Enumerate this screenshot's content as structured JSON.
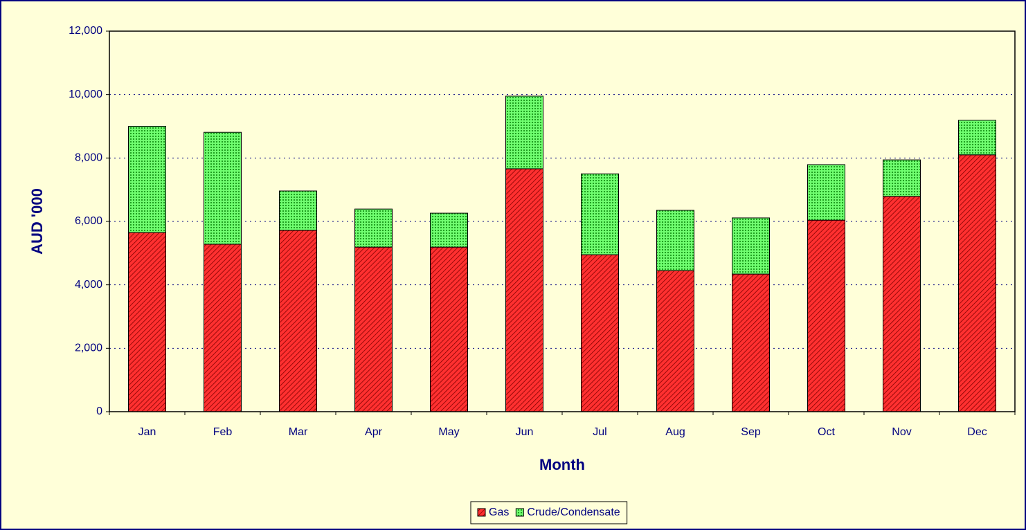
{
  "chart_data": {
    "type": "stacked_bar",
    "x_label": "Month",
    "y_label": "AUD '000",
    "categories": [
      "Jan",
      "Feb",
      "Mar",
      "Apr",
      "May",
      "Jun",
      "Jul",
      "Aug",
      "Sep",
      "Oct",
      "Nov",
      "Dec"
    ],
    "series": [
      {
        "name": "Gas",
        "color": "#ff2020",
        "values": [
          5650,
          5280,
          5720,
          5190,
          5190,
          7660,
          4950,
          4450,
          4340,
          6040,
          6790,
          8100
        ]
      },
      {
        "name": "Crude/Condensate",
        "color": "#40ff40",
        "values": [
          3350,
          3530,
          1240,
          1200,
          1070,
          2290,
          2550,
          1900,
          1770,
          1750,
          1150,
          1090
        ]
      }
    ],
    "ylim": [
      0,
      12000
    ],
    "yticks": [
      0,
      {
        "value": 2000,
        "label": "2,000"
      },
      {
        "value": 4000,
        "label": "4,000"
      },
      {
        "value": 6000,
        "label": "6,000"
      },
      {
        "value": 8000,
        "label": "8,000"
      },
      {
        "value": 10000,
        "label": "10,000"
      },
      {
        "value": 12000,
        "label": "12,000"
      }
    ],
    "grid": true,
    "legend": "bottom"
  }
}
